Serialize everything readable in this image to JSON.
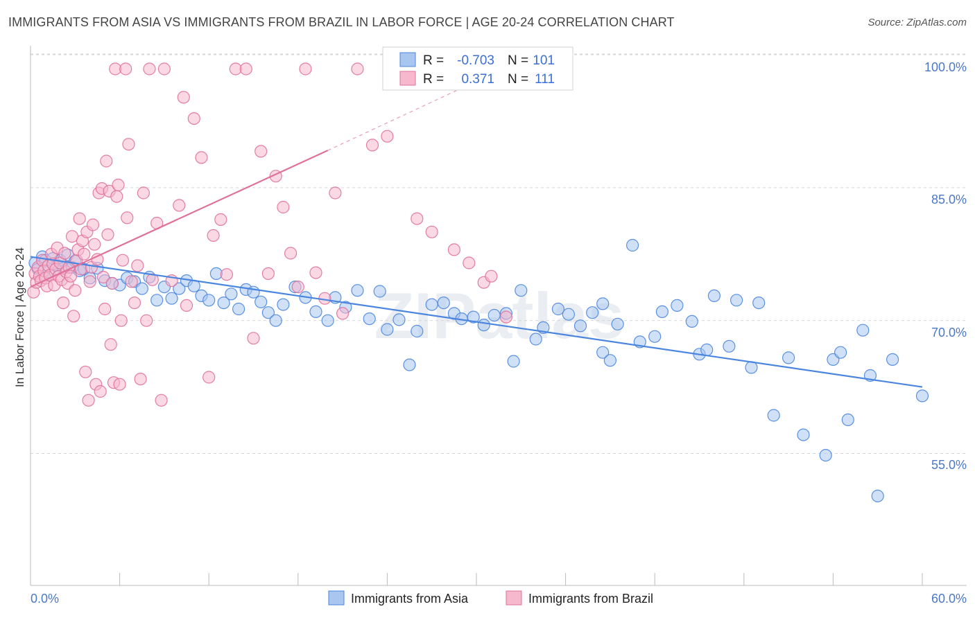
{
  "chart_data": {
    "type": "scatter",
    "title": "IMMIGRANTS FROM ASIA VS IMMIGRANTS FROM BRAZIL IN LABOR FORCE | AGE 20-24 CORRELATION CHART",
    "source": "Source: ZipAtlas.com",
    "ylabel": "In Labor Force | Age 20-24",
    "xlim": [
      0,
      60
    ],
    "ylim": [
      40,
      103
    ],
    "x_tick_labels": [
      "0.0%",
      "60.0%"
    ],
    "y_ticks": [
      55,
      70,
      85,
      100
    ],
    "y_tick_labels": [
      "55.0%",
      "70.0%",
      "85.0%",
      "100.0%"
    ],
    "grid": true,
    "watermark": "ZIPatlas",
    "legend_position": "top-center",
    "series": [
      {
        "name": "Immigrants from Asia",
        "color": "#4a86e0",
        "fill": "#a9c6f0",
        "R": "-0.703",
        "N": "101",
        "trend": {
          "x": [
            0,
            60
          ],
          "y": [
            77.2,
            62.5
          ]
        },
        "points": [
          [
            0.3,
            76.5
          ],
          [
            0.5,
            75.8
          ],
          [
            0.8,
            77.2
          ],
          [
            1.0,
            76.8
          ],
          [
            1.2,
            75.5
          ],
          [
            1.5,
            77.0
          ],
          [
            1.8,
            76.2
          ],
          [
            2.0,
            76.8
          ],
          [
            2.2,
            75.9
          ],
          [
            2.5,
            77.4
          ],
          [
            2.8,
            76.0
          ],
          [
            3.0,
            76.7
          ],
          [
            3.3,
            75.6
          ],
          [
            3.6,
            75.8
          ],
          [
            4.0,
            74.8
          ],
          [
            4.5,
            75.9
          ],
          [
            5.0,
            74.5
          ],
          [
            5.5,
            74.2
          ],
          [
            6.0,
            74.0
          ],
          [
            6.5,
            74.8
          ],
          [
            7.0,
            74.4
          ],
          [
            7.5,
            73.6
          ],
          [
            8.0,
            74.9
          ],
          [
            8.5,
            72.3
          ],
          [
            9.0,
            73.8
          ],
          [
            9.5,
            72.5
          ],
          [
            10.0,
            73.6
          ],
          [
            10.5,
            74.5
          ],
          [
            11.0,
            73.9
          ],
          [
            11.5,
            72.8
          ],
          [
            12.0,
            72.3
          ],
          [
            12.5,
            75.3
          ],
          [
            13.0,
            72.0
          ],
          [
            13.5,
            73.0
          ],
          [
            14.0,
            71.3
          ],
          [
            14.5,
            73.5
          ],
          [
            15.0,
            73.2
          ],
          [
            15.5,
            72.1
          ],
          [
            16.0,
            70.9
          ],
          [
            16.5,
            70.0
          ],
          [
            17.0,
            71.8
          ],
          [
            17.8,
            73.8
          ],
          [
            18.5,
            72.6
          ],
          [
            19.2,
            71.0
          ],
          [
            20.0,
            70.0
          ],
          [
            20.5,
            72.6
          ],
          [
            21.2,
            71.5
          ],
          [
            22.0,
            73.4
          ],
          [
            22.8,
            70.2
          ],
          [
            23.5,
            73.3
          ],
          [
            24.0,
            69.0
          ],
          [
            24.8,
            70.1
          ],
          [
            25.5,
            65.0
          ],
          [
            26.0,
            68.8
          ],
          [
            27.0,
            71.8
          ],
          [
            27.8,
            72.0
          ],
          [
            28.5,
            70.8
          ],
          [
            29.0,
            70.2
          ],
          [
            29.8,
            70.4
          ],
          [
            30.5,
            69.5
          ],
          [
            31.2,
            70.6
          ],
          [
            32.0,
            70.8
          ],
          [
            32.5,
            65.4
          ],
          [
            33.0,
            73.4
          ],
          [
            34.0,
            67.9
          ],
          [
            34.5,
            69.2
          ],
          [
            35.5,
            71.3
          ],
          [
            36.2,
            70.7
          ],
          [
            37.0,
            69.4
          ],
          [
            37.8,
            70.9
          ],
          [
            38.5,
            71.9
          ],
          [
            38.5,
            66.4
          ],
          [
            39.0,
            65.5
          ],
          [
            39.5,
            69.6
          ],
          [
            40.5,
            78.5
          ],
          [
            41.0,
            67.6
          ],
          [
            42.0,
            68.2
          ],
          [
            42.5,
            71.0
          ],
          [
            43.5,
            71.7
          ],
          [
            44.5,
            69.9
          ],
          [
            45.0,
            66.2
          ],
          [
            45.5,
            66.7
          ],
          [
            46.0,
            72.8
          ],
          [
            47.0,
            67.1
          ],
          [
            47.5,
            72.3
          ],
          [
            48.5,
            64.7
          ],
          [
            49.0,
            72.0
          ],
          [
            50.0,
            59.3
          ],
          [
            51.0,
            65.8
          ],
          [
            52.0,
            57.1
          ],
          [
            53.5,
            54.8
          ],
          [
            54.0,
            65.6
          ],
          [
            54.5,
            66.4
          ],
          [
            55.0,
            58.8
          ],
          [
            56.0,
            68.9
          ],
          [
            56.5,
            63.8
          ],
          [
            57.0,
            50.2
          ],
          [
            58.0,
            65.6
          ],
          [
            60.0,
            61.5
          ]
        ]
      },
      {
        "name": "Immigrants from Brazil",
        "color": "#e0709a",
        "fill": "#f5b8cd",
        "R": "0.371",
        "N": "111",
        "trend": {
          "x": [
            0,
            20
          ],
          "y": [
            73.8,
            89.2
          ]
        },
        "trend_dashed": {
          "x": [
            20,
            30
          ],
          "y": [
            89.2,
            97.0
          ]
        },
        "points": [
          [
            0.2,
            73.2
          ],
          [
            0.3,
            75.3
          ],
          [
            0.4,
            74.3
          ],
          [
            0.5,
            76.0
          ],
          [
            0.6,
            75.0
          ],
          [
            0.7,
            74.5
          ],
          [
            0.8,
            76.8
          ],
          [
            0.9,
            75.6
          ],
          [
            1.0,
            74.8
          ],
          [
            1.1,
            73.9
          ],
          [
            1.2,
            76.2
          ],
          [
            1.3,
            75.1
          ],
          [
            1.4,
            77.5
          ],
          [
            1.5,
            76.4
          ],
          [
            1.6,
            74.0
          ],
          [
            1.7,
            75.8
          ],
          [
            1.8,
            78.2
          ],
          [
            1.9,
            75.0
          ],
          [
            2.0,
            76.5
          ],
          [
            2.1,
            74.6
          ],
          [
            2.2,
            72.0
          ],
          [
            2.3,
            77.6
          ],
          [
            2.4,
            75.5
          ],
          [
            2.5,
            74.2
          ],
          [
            2.6,
            76.0
          ],
          [
            2.7,
            75.0
          ],
          [
            2.8,
            79.5
          ],
          [
            2.9,
            70.5
          ],
          [
            3.0,
            73.4
          ],
          [
            3.1,
            76.8
          ],
          [
            3.2,
            78.0
          ],
          [
            3.3,
            81.5
          ],
          [
            3.4,
            75.8
          ],
          [
            3.5,
            79.0
          ],
          [
            3.6,
            77.5
          ],
          [
            3.7,
            64.2
          ],
          [
            3.8,
            80.0
          ],
          [
            3.9,
            61.0
          ],
          [
            4.0,
            74.4
          ],
          [
            4.1,
            76.0
          ],
          [
            4.2,
            80.8
          ],
          [
            4.3,
            78.6
          ],
          [
            4.4,
            62.8
          ],
          [
            4.5,
            76.9
          ],
          [
            4.6,
            84.4
          ],
          [
            4.7,
            62.0
          ],
          [
            4.8,
            84.9
          ],
          [
            4.9,
            74.9
          ],
          [
            5.0,
            71.3
          ],
          [
            5.1,
            88.0
          ],
          [
            5.2,
            79.7
          ],
          [
            5.3,
            84.6
          ],
          [
            5.4,
            67.3
          ],
          [
            5.5,
            74.2
          ],
          [
            5.6,
            63.0
          ],
          [
            5.7,
            98.4
          ],
          [
            5.8,
            84.0
          ],
          [
            5.9,
            85.3
          ],
          [
            6.0,
            62.8
          ],
          [
            6.1,
            70.0
          ],
          [
            6.2,
            76.8
          ],
          [
            6.4,
            98.4
          ],
          [
            6.5,
            81.6
          ],
          [
            6.6,
            89.9
          ],
          [
            6.8,
            74.4
          ],
          [
            7.0,
            72.0
          ],
          [
            7.2,
            76.2
          ],
          [
            7.4,
            63.4
          ],
          [
            7.6,
            84.4
          ],
          [
            7.8,
            70.0
          ],
          [
            8.0,
            98.4
          ],
          [
            8.2,
            74.6
          ],
          [
            8.5,
            81.0
          ],
          [
            8.8,
            61.0
          ],
          [
            9.0,
            98.4
          ],
          [
            9.5,
            74.5
          ],
          [
            10.0,
            83.0
          ],
          [
            10.3,
            95.2
          ],
          [
            10.5,
            71.7
          ],
          [
            11.0,
            92.8
          ],
          [
            11.5,
            88.4
          ],
          [
            12.0,
            63.6
          ],
          [
            12.3,
            79.6
          ],
          [
            12.8,
            81.4
          ],
          [
            13.2,
            75.2
          ],
          [
            13.8,
            98.4
          ],
          [
            14.5,
            98.4
          ],
          [
            15.0,
            68.0
          ],
          [
            15.5,
            89.1
          ],
          [
            16.0,
            75.3
          ],
          [
            16.5,
            86.3
          ],
          [
            17.0,
            82.8
          ],
          [
            17.5,
            77.6
          ],
          [
            18.0,
            73.8
          ],
          [
            18.5,
            98.4
          ],
          [
            19.2,
            75.4
          ],
          [
            19.8,
            72.5
          ],
          [
            20.5,
            84.4
          ],
          [
            21.0,
            70.8
          ],
          [
            22.0,
            98.4
          ],
          [
            23.0,
            89.8
          ],
          [
            24.0,
            90.8
          ],
          [
            25.0,
            98.4
          ],
          [
            26.0,
            81.5
          ],
          [
            27.0,
            80.0
          ],
          [
            28.5,
            78.0
          ],
          [
            29.5,
            76.5
          ],
          [
            30.5,
            74.3
          ],
          [
            31.0,
            75.0
          ],
          [
            32.0,
            70.4
          ]
        ]
      }
    ]
  }
}
